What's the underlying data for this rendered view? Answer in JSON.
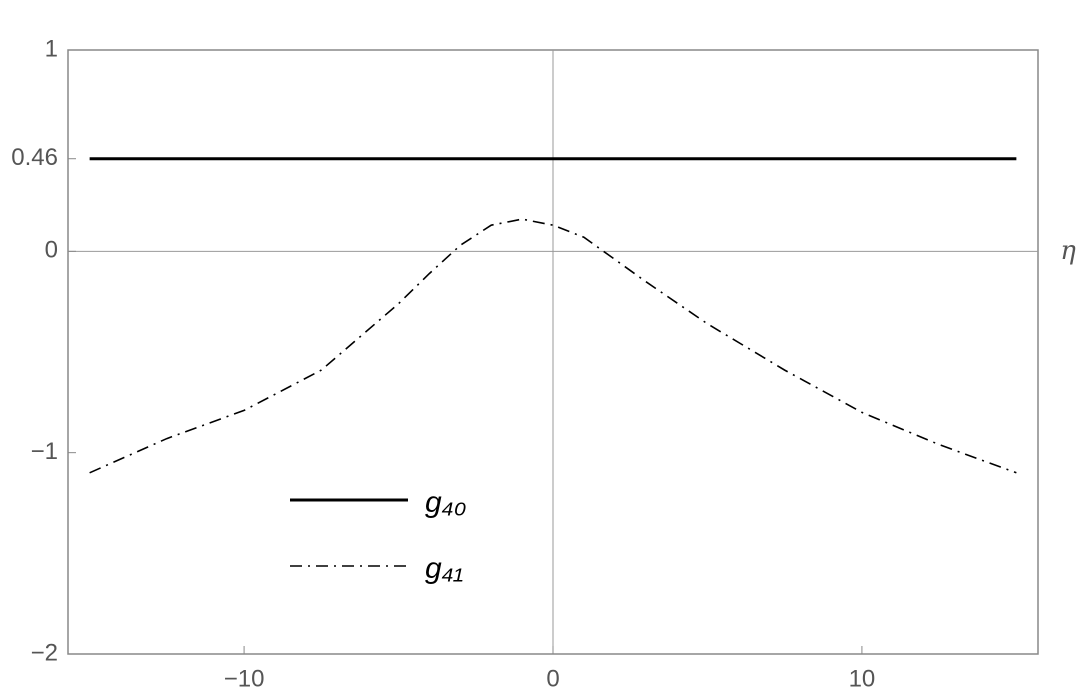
{
  "chart_data": {
    "type": "line",
    "x_label": "η",
    "xlim": [
      -15.7,
      15.7
    ],
    "ylim": [
      -2,
      1
    ],
    "xticks": [
      {
        "value": -10,
        "label": "−10"
      },
      0,
      10
    ],
    "yticks": [
      {
        "value": -2,
        "label": "−2"
      },
      {
        "value": -1,
        "label": "−1"
      },
      0,
      0.46,
      1
    ],
    "legend": "lower left",
    "series": [
      {
        "name": "g₄₀",
        "color": "#000000",
        "dash": "solid",
        "x": [
          -15,
          15
        ],
        "values": [
          0.46,
          0.46
        ]
      },
      {
        "name": "g₄₁",
        "color": "#000000",
        "dash": "dashdot",
        "x": [
          -15,
          -12.5,
          -10,
          -7.5,
          -5,
          -4,
          -3,
          -2,
          -1,
          0,
          1,
          2,
          3,
          5,
          7.5,
          10,
          12.5,
          15
        ],
        "values": [
          -1.1,
          -0.93,
          -0.79,
          -0.59,
          -0.26,
          -0.11,
          0.03,
          0.13,
          0.16,
          0.13,
          0.07,
          -0.04,
          -0.15,
          -0.36,
          -0.59,
          -0.8,
          -0.96,
          -1.1
        ]
      }
    ]
  }
}
